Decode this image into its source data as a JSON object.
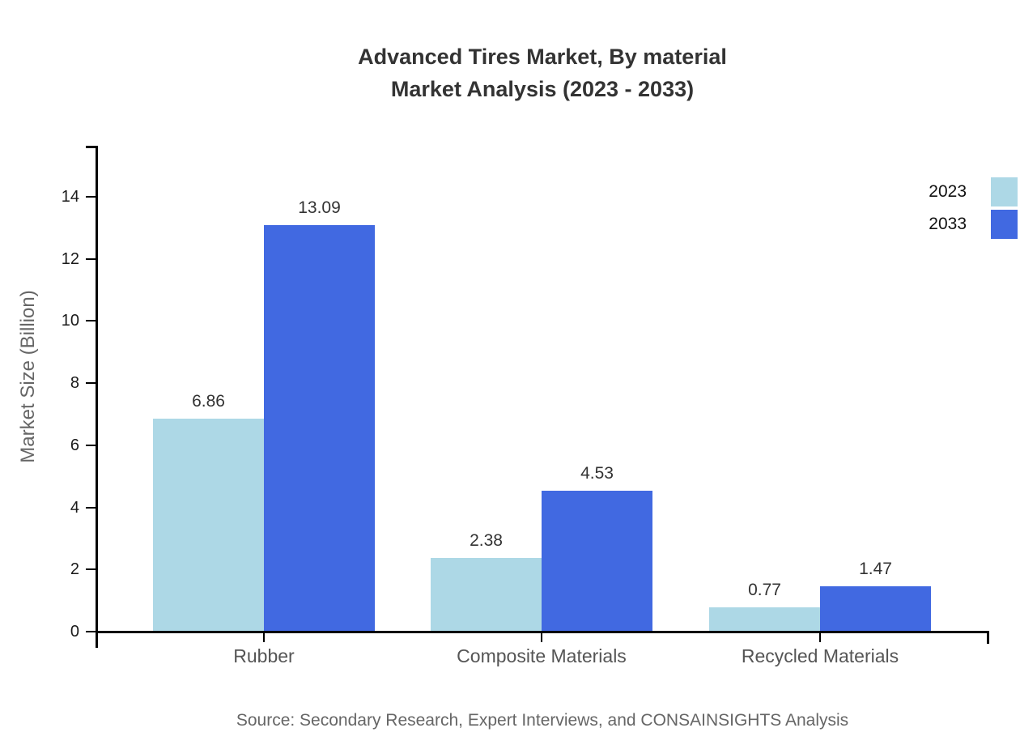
{
  "title": {
    "line1": "Advanced Tires Market, By material",
    "line2": "Market Analysis (2023 - 2033)"
  },
  "y_axis_label": "Market Size (Billion)",
  "source": "Source: Secondary Research, Expert Interviews, and CONSAINSIGHTS Analysis",
  "legend": [
    {
      "label": "2023",
      "color": "#ADD8E6"
    },
    {
      "label": "2033",
      "color": "#4169E1"
    }
  ],
  "colors": {
    "series_2023": "#ADD8E6",
    "series_2033": "#4169E1",
    "axis": "#000000",
    "title_text": "#333333",
    "muted_text": "#666666"
  },
  "chart_data": {
    "type": "bar",
    "title": "Advanced Tires Market, By material Market Analysis (2023 - 2033)",
    "categories": [
      "Rubber",
      "Composite Materials",
      "Recycled Materials"
    ],
    "series": [
      {
        "name": "2023",
        "color": "#ADD8E6",
        "values": [
          6.86,
          2.38,
          0.77
        ]
      },
      {
        "name": "2033",
        "color": "#4169E1",
        "values": [
          13.09,
          4.53,
          1.47
        ]
      }
    ],
    "xlabel": "",
    "ylabel": "Market Size (Billion)",
    "ylim": [
      0,
      15.6
    ],
    "yticks": [
      0,
      2,
      4,
      6,
      8,
      10,
      12,
      14
    ],
    "grid": false,
    "legend_position": "top-right",
    "value_labels": true,
    "source": "Source: Secondary Research, Expert Interviews, and CONSAINSIGHTS Analysis"
  }
}
